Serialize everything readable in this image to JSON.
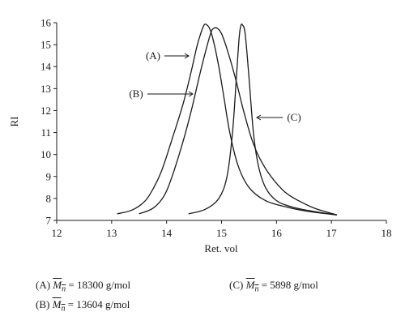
{
  "chart_data": {
    "type": "line",
    "xlabel": "Ret. vol",
    "ylabel": "RI",
    "xlim": [
      12,
      18
    ],
    "ylim": [
      7,
      16
    ],
    "xticks": [
      "12",
      "13",
      "14",
      "15",
      "16",
      "17",
      "18"
    ],
    "yticks": [
      "7",
      "8",
      "9",
      "10",
      "11",
      "12",
      "13",
      "14",
      "15",
      "16"
    ],
    "grid": false,
    "series": [
      {
        "name": "(A)",
        "points": [
          [
            13.1,
            7.3
          ],
          [
            13.35,
            7.45
          ],
          [
            13.55,
            7.75
          ],
          [
            13.7,
            8.2
          ],
          [
            13.9,
            9.2
          ],
          [
            14.1,
            10.7
          ],
          [
            14.3,
            12.3
          ],
          [
            14.45,
            13.8
          ],
          [
            14.55,
            14.9
          ],
          [
            14.62,
            15.5
          ],
          [
            14.68,
            15.88
          ],
          [
            14.72,
            15.92
          ],
          [
            14.78,
            15.75
          ],
          [
            14.85,
            15.2
          ],
          [
            14.95,
            14.0
          ],
          [
            15.05,
            12.5
          ],
          [
            15.15,
            11.0
          ],
          [
            15.3,
            9.5
          ],
          [
            15.5,
            8.5
          ],
          [
            15.8,
            7.9
          ],
          [
            16.2,
            7.6
          ],
          [
            16.6,
            7.4
          ],
          [
            17.1,
            7.25
          ]
        ]
      },
      {
        "name": "(B)",
        "points": [
          [
            13.5,
            7.3
          ],
          [
            13.75,
            7.55
          ],
          [
            13.95,
            8.1
          ],
          [
            14.1,
            9.0
          ],
          [
            14.3,
            10.6
          ],
          [
            14.45,
            12.0
          ],
          [
            14.6,
            13.6
          ],
          [
            14.7,
            14.6
          ],
          [
            14.8,
            15.5
          ],
          [
            14.85,
            15.73
          ],
          [
            14.92,
            15.75
          ],
          [
            15.0,
            15.5
          ],
          [
            15.1,
            14.8
          ],
          [
            15.25,
            13.5
          ],
          [
            15.4,
            12.0
          ],
          [
            15.55,
            10.7
          ],
          [
            15.7,
            9.8
          ],
          [
            15.9,
            9.0
          ],
          [
            16.15,
            8.3
          ],
          [
            16.4,
            7.9
          ],
          [
            16.7,
            7.55
          ],
          [
            17.1,
            7.25
          ]
        ]
      },
      {
        "name": "(C)",
        "points": [
          [
            14.4,
            7.3
          ],
          [
            14.7,
            7.5
          ],
          [
            14.95,
            8.0
          ],
          [
            15.1,
            9.0
          ],
          [
            15.2,
            11.0
          ],
          [
            15.27,
            13.5
          ],
          [
            15.32,
            15.3
          ],
          [
            15.35,
            15.85
          ],
          [
            15.38,
            15.9
          ],
          [
            15.43,
            15.5
          ],
          [
            15.5,
            13.5
          ],
          [
            15.58,
            11.0
          ],
          [
            15.67,
            9.5
          ],
          [
            15.8,
            8.5
          ],
          [
            16.0,
            7.9
          ],
          [
            16.3,
            7.6
          ],
          [
            16.7,
            7.4
          ],
          [
            17.1,
            7.25
          ]
        ]
      }
    ],
    "annotations": [
      {
        "label": "(A)",
        "x": 14.45,
        "y": 14.3
      },
      {
        "label": "(B)",
        "x": 14.5,
        "y": 12.3
      },
      {
        "label": "(C)",
        "x": 15.6,
        "y": 11.6
      }
    ]
  },
  "legend": {
    "a_prefix": "(A) ",
    "a_value": " = 18300 g/mol",
    "b_prefix": "(B) ",
    "b_value": " = 13604 g/mol",
    "c_prefix": "(C) ",
    "c_value": " = 5898 g/mol",
    "mn_base": "M",
    "mn_sub": "n"
  }
}
